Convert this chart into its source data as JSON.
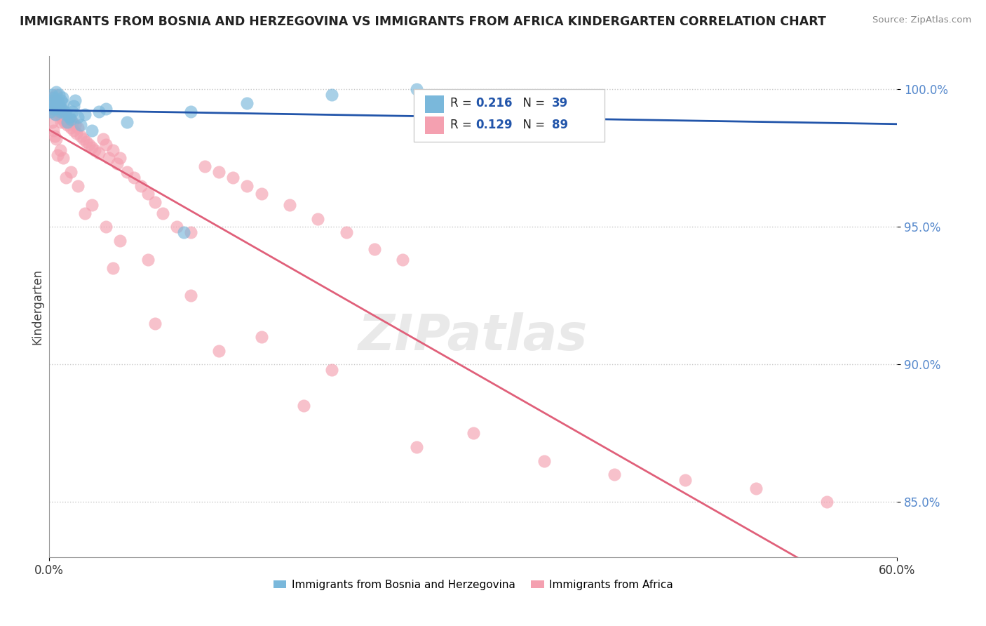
{
  "title": "IMMIGRANTS FROM BOSNIA AND HERZEGOVINA VS IMMIGRANTS FROM AFRICA KINDERGARTEN CORRELATION CHART",
  "source": "Source: ZipAtlas.com",
  "ylabel": "Kindergarten",
  "xmin": 0.0,
  "xmax": 60.0,
  "ymin": 83.0,
  "ymax": 101.2,
  "y_ticks": [
    85.0,
    90.0,
    95.0,
    100.0
  ],
  "y_tick_labels": [
    "85.0%",
    "90.0%",
    "95.0%",
    "100.0%"
  ],
  "blue_r": "0.216",
  "blue_n": "39",
  "pink_r": "0.129",
  "pink_n": "89",
  "blue_color": "#7ab8db",
  "pink_color": "#f4a0b0",
  "blue_line_color": "#2255aa",
  "pink_line_color": "#e0607a",
  "tick_color": "#5588cc",
  "background_color": "#ffffff",
  "blue_series_label": "Immigrants from Bosnia and Herzegovina",
  "pink_series_label": "Immigrants from Africa",
  "blue_x": [
    0.1,
    0.15,
    0.2,
    0.25,
    0.3,
    0.35,
    0.4,
    0.45,
    0.5,
    0.55,
    0.6,
    0.65,
    0.7,
    0.75,
    0.8,
    0.85,
    0.9,
    0.95,
    1.0,
    1.1,
    1.2,
    1.3,
    1.4,
    1.5,
    1.6,
    1.7,
    1.8,
    2.0,
    2.2,
    2.5,
    3.0,
    3.5,
    4.0,
    5.5,
    9.5,
    10.0,
    14.0,
    20.0,
    26.0
  ],
  "blue_y": [
    99.2,
    99.5,
    99.8,
    99.6,
    99.3,
    99.7,
    99.4,
    99.1,
    99.9,
    99.5,
    99.6,
    99.3,
    99.8,
    99.4,
    99.2,
    99.6,
    99.3,
    99.7,
    99.5,
    99.2,
    99.1,
    98.8,
    99.0,
    98.9,
    99.2,
    99.4,
    99.6,
    99.0,
    98.7,
    99.1,
    98.5,
    99.2,
    99.3,
    98.8,
    94.8,
    99.2,
    99.5,
    99.8,
    100.0
  ],
  "pink_x": [
    0.1,
    0.15,
    0.2,
    0.25,
    0.3,
    0.35,
    0.4,
    0.45,
    0.5,
    0.55,
    0.6,
    0.65,
    0.7,
    0.75,
    0.8,
    0.85,
    0.9,
    0.95,
    1.0,
    1.1,
    1.2,
    1.3,
    1.4,
    1.5,
    1.6,
    1.7,
    1.8,
    1.9,
    2.0,
    2.2,
    2.4,
    2.6,
    2.8,
    3.0,
    3.2,
    3.5,
    3.8,
    4.0,
    4.2,
    4.5,
    4.8,
    5.0,
    5.5,
    6.0,
    6.5,
    7.0,
    7.5,
    8.0,
    9.0,
    10.0,
    11.0,
    12.0,
    13.0,
    14.0,
    15.0,
    17.0,
    19.0,
    21.0,
    23.0,
    25.0,
    0.2,
    0.3,
    0.5,
    0.8,
    1.0,
    1.5,
    2.0,
    3.0,
    4.0,
    5.0,
    7.0,
    10.0,
    15.0,
    20.0,
    30.0,
    35.0,
    40.0,
    50.0,
    55.0,
    0.4,
    0.6,
    1.2,
    2.5,
    4.5,
    7.5,
    12.0,
    18.0,
    26.0,
    45.0
  ],
  "pink_y": [
    99.5,
    99.3,
    99.7,
    99.2,
    99.5,
    99.4,
    99.6,
    99.1,
    99.8,
    99.3,
    99.4,
    99.2,
    99.5,
    99.1,
    99.3,
    98.8,
    99.0,
    98.9,
    99.1,
    98.8,
    99.0,
    98.7,
    98.9,
    98.6,
    98.8,
    98.5,
    98.7,
    98.4,
    98.6,
    98.3,
    98.2,
    98.1,
    98.0,
    97.9,
    97.8,
    97.7,
    98.2,
    98.0,
    97.5,
    97.8,
    97.3,
    97.5,
    97.0,
    96.8,
    96.5,
    96.2,
    95.9,
    95.5,
    95.0,
    94.8,
    97.2,
    97.0,
    96.8,
    96.5,
    96.2,
    95.8,
    95.3,
    94.8,
    94.2,
    93.8,
    98.8,
    98.5,
    98.2,
    97.8,
    97.5,
    97.0,
    96.5,
    95.8,
    95.0,
    94.5,
    93.8,
    92.5,
    91.0,
    89.8,
    87.5,
    86.5,
    86.0,
    85.5,
    85.0,
    98.3,
    97.6,
    96.8,
    95.5,
    93.5,
    91.5,
    90.5,
    88.5,
    87.0,
    85.8
  ]
}
